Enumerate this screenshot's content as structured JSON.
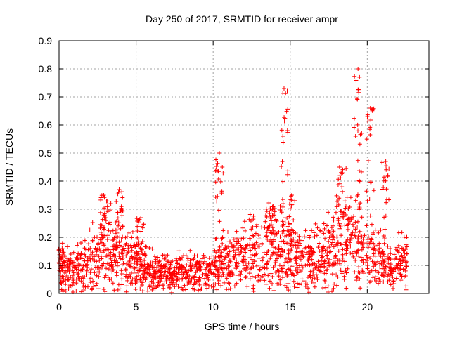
{
  "chart_data": {
    "type": "scatter",
    "title": "Day 250 of 2017, SRMTID for receiver ampr",
    "xlabel": "GPS time / hours",
    "ylabel": "SRMTID / TECUs",
    "xlim": [
      0,
      24
    ],
    "ylim": [
      0,
      0.9
    ],
    "grid": true,
    "xticks": [
      0,
      5,
      10,
      15,
      20
    ],
    "xtick_labels": [
      "0",
      "5",
      "10",
      "15",
      "20"
    ],
    "yticks": [
      0,
      0.1,
      0.2,
      0.3,
      0.4,
      0.5,
      0.6,
      0.7,
      0.8,
      0.9
    ],
    "ytick_labels": [
      "0",
      "0.1",
      "0.2",
      "0.3",
      "0.4",
      "0.5",
      "0.6",
      "0.7",
      "0.8",
      "0.9"
    ],
    "color": "#ff0000",
    "marker": "+",
    "x_range_observed": [
      0,
      22.6
    ],
    "y_range_observed": [
      0,
      0.8
    ],
    "series": [
      {
        "name": "SRMTID",
        "baseline_envelope": [
          [
            0.0,
            0.09
          ],
          [
            0.5,
            0.08
          ],
          [
            1.0,
            0.08
          ],
          [
            1.5,
            0.1
          ],
          [
            2.0,
            0.12
          ],
          [
            2.5,
            0.14
          ],
          [
            3.0,
            0.16
          ],
          [
            3.5,
            0.15
          ],
          [
            4.0,
            0.15
          ],
          [
            4.5,
            0.12
          ],
          [
            5.0,
            0.1
          ],
          [
            5.5,
            0.09
          ],
          [
            6.0,
            0.08
          ],
          [
            7.0,
            0.07
          ],
          [
            8.0,
            0.07
          ],
          [
            9.0,
            0.08
          ],
          [
            10.0,
            0.09
          ],
          [
            10.5,
            0.1
          ],
          [
            11.0,
            0.12
          ],
          [
            12.0,
            0.13
          ],
          [
            13.0,
            0.15
          ],
          [
            14.0,
            0.17
          ],
          [
            14.5,
            0.16
          ],
          [
            15.0,
            0.14
          ],
          [
            15.5,
            0.1
          ],
          [
            16.0,
            0.12
          ],
          [
            17.0,
            0.14
          ],
          [
            18.0,
            0.17
          ],
          [
            18.5,
            0.2
          ],
          [
            19.0,
            0.2
          ],
          [
            19.5,
            0.18
          ],
          [
            20.0,
            0.15
          ],
          [
            20.5,
            0.12
          ],
          [
            21.0,
            0.1
          ],
          [
            22.0,
            0.1
          ],
          [
            22.6,
            0.11
          ]
        ],
        "peaks": [
          {
            "x": 0.2,
            "y": 0.16
          },
          {
            "x": 2.9,
            "y": 0.35
          },
          {
            "x": 3.9,
            "y": 0.37
          },
          {
            "x": 5.3,
            "y": 0.27
          },
          {
            "x": 10.4,
            "y": 0.5
          },
          {
            "x": 13.9,
            "y": 0.31
          },
          {
            "x": 14.6,
            "y": 0.73
          },
          {
            "x": 15.1,
            "y": 0.35
          },
          {
            "x": 18.2,
            "y": 0.45
          },
          {
            "x": 19.4,
            "y": 0.8
          },
          {
            "x": 20.2,
            "y": 0.66
          },
          {
            "x": 21.2,
            "y": 0.47
          }
        ]
      }
    ]
  }
}
